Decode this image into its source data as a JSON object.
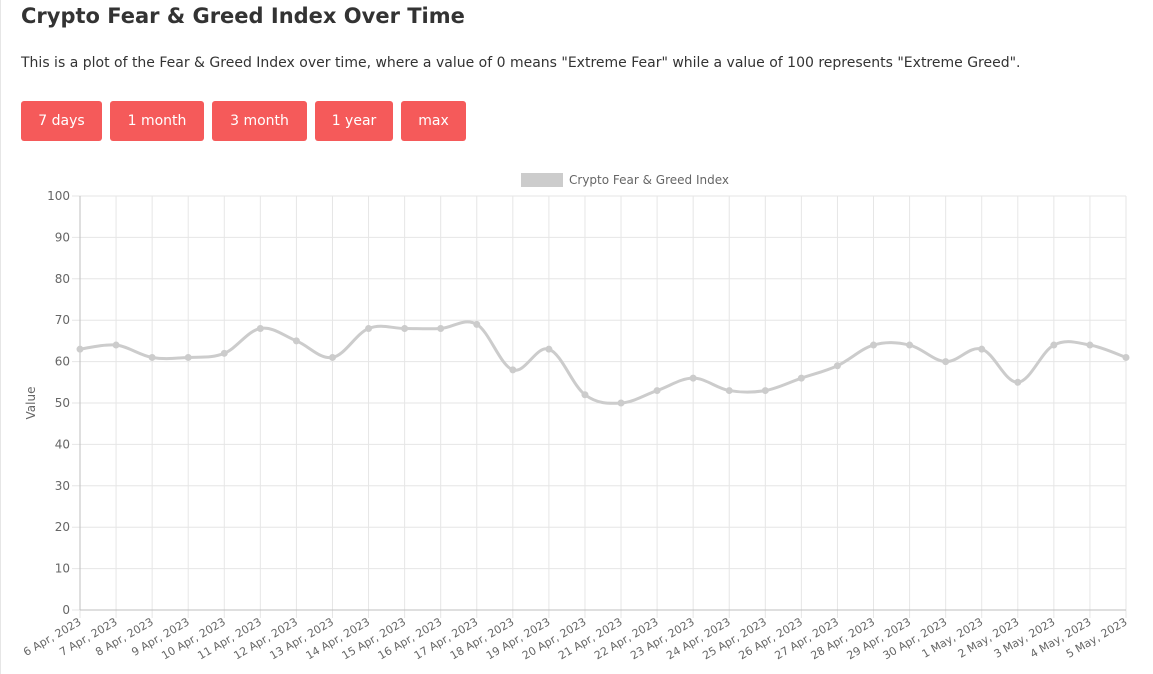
{
  "page": {
    "title": "Crypto Fear & Greed Index Over Time",
    "description": "This is a plot of the Fear & Greed Index over time, where a value of 0 means \"Extreme Fear\" while a value of 100 represents \"Extreme Greed\"."
  },
  "range_buttons": [
    {
      "label": "7 days"
    },
    {
      "label": "1 month"
    },
    {
      "label": "3 month"
    },
    {
      "label": "1 year"
    },
    {
      "label": "max"
    }
  ],
  "colors": {
    "button_bg": "#f55a5a",
    "button_text": "#ffffff",
    "series": "#cccccc",
    "grid": "#e6e6e6"
  },
  "chart_data": {
    "type": "line",
    "title": "",
    "xlabel": "",
    "ylabel": "Value",
    "ylim": [
      0,
      100
    ],
    "yticks": [
      0,
      10,
      20,
      30,
      40,
      50,
      60,
      70,
      80,
      90,
      100
    ],
    "grid": true,
    "legend_position": "top-center",
    "categories": [
      "6 Apr, 2023",
      "7 Apr, 2023",
      "8 Apr, 2023",
      "9 Apr, 2023",
      "10 Apr, 2023",
      "11 Apr, 2023",
      "12 Apr, 2023",
      "13 Apr, 2023",
      "14 Apr, 2023",
      "15 Apr, 2023",
      "16 Apr, 2023",
      "17 Apr, 2023",
      "18 Apr, 2023",
      "19 Apr, 2023",
      "20 Apr, 2023",
      "21 Apr, 2023",
      "22 Apr, 2023",
      "23 Apr, 2023",
      "24 Apr, 2023",
      "25 Apr, 2023",
      "26 Apr, 2023",
      "27 Apr, 2023",
      "28 Apr, 2023",
      "29 Apr, 2023",
      "30 Apr, 2023",
      "1 May, 2023",
      "2 May, 2023",
      "3 May, 2023",
      "4 May, 2023",
      "5 May, 2023"
    ],
    "series": [
      {
        "name": "Crypto Fear & Greed Index",
        "color": "#cccccc",
        "values": [
          63,
          64,
          61,
          61,
          62,
          68,
          65,
          61,
          68,
          68,
          68,
          69,
          58,
          63,
          52,
          50,
          53,
          56,
          53,
          53,
          56,
          59,
          64,
          64,
          60,
          63,
          55,
          64,
          64,
          61
        ]
      }
    ]
  }
}
